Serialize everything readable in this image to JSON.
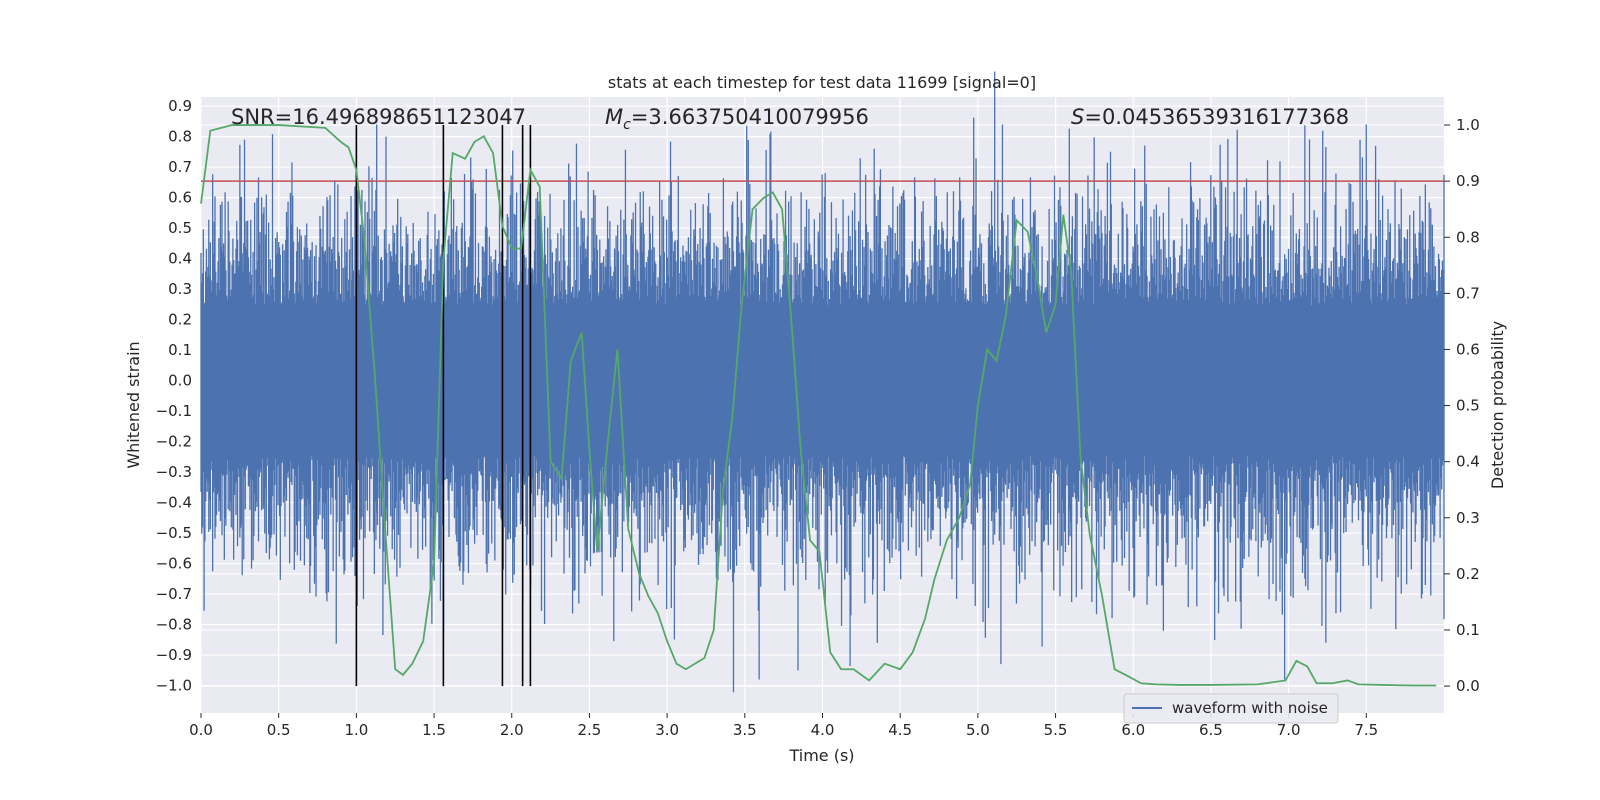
{
  "chart_data": {
    "type": "line",
    "title": "stats at each timestep for test data 11699 [signal=0]",
    "xlabel": "Time (s)",
    "ylabel": "Whitened strain",
    "y2label": "Detection probability",
    "xlim": [
      0.0,
      8.0
    ],
    "ylim": [
      -1.09,
      0.93
    ],
    "y2lim": [
      -0.048,
      1.05
    ],
    "xticks": [
      0.0,
      0.5,
      1.0,
      1.5,
      2.0,
      2.5,
      3.0,
      3.5,
      4.0,
      4.5,
      5.0,
      5.5,
      6.0,
      6.5,
      7.0,
      7.5
    ],
    "yticks": [
      0.9,
      0.8,
      0.7,
      0.6,
      0.5,
      0.4,
      0.3,
      0.2,
      0.1,
      0.0,
      -0.1,
      -0.2,
      -0.3,
      -0.4,
      -0.5,
      -0.6,
      -0.7,
      -0.8,
      -0.9,
      -1.0
    ],
    "y2ticks": [
      1.0,
      0.9,
      0.8,
      0.7,
      0.6,
      0.5,
      0.4,
      0.3,
      0.2,
      0.1,
      0.0
    ],
    "annotations": {
      "snr": "SNR=16.496898651123047",
      "mc_symbol": "M",
      "mc_subscript": "c",
      "mc_value": "=3.663750410079956",
      "s_symbol": "S",
      "s_value": "=0.04536539316177368"
    },
    "legend": {
      "label": "waveform with noise",
      "location": "lower-right"
    },
    "threshold": {
      "axis": "right",
      "value": 0.9,
      "color": "#c44e52"
    },
    "vlines_x": [
      1.0,
      1.56,
      1.94,
      2.07,
      2.12
    ],
    "series": [
      {
        "name": "waveform with noise",
        "axis": "left",
        "color": "#4c72b0",
        "kind": "noise-envelope",
        "n_points": 1600,
        "typical_amplitude": 0.45,
        "noise_seed": 11699
      },
      {
        "name": "detection probability",
        "axis": "right",
        "color": "#55a868",
        "x": [
          0.0,
          0.06,
          0.2,
          0.5,
          0.8,
          0.9,
          0.95,
          1.0,
          1.05,
          1.12,
          1.18,
          1.25,
          1.3,
          1.36,
          1.43,
          1.5,
          1.56,
          1.62,
          1.7,
          1.76,
          1.82,
          1.88,
          1.94,
          2.0,
          2.06,
          2.12,
          2.18,
          2.25,
          2.32,
          2.38,
          2.45,
          2.5,
          2.55,
          2.62,
          2.68,
          2.75,
          2.82,
          2.88,
          2.94,
          3.0,
          3.06,
          3.12,
          3.18,
          3.24,
          3.3,
          3.36,
          3.42,
          3.48,
          3.55,
          3.62,
          3.68,
          3.74,
          3.8,
          3.86,
          3.92,
          3.98,
          4.05,
          4.12,
          4.2,
          4.3,
          4.4,
          4.5,
          4.58,
          4.66,
          4.72,
          4.8,
          4.88,
          4.95,
          5.0,
          5.06,
          5.12,
          5.18,
          5.25,
          5.32,
          5.38,
          5.44,
          5.5,
          5.55,
          5.6,
          5.66,
          5.72,
          5.8,
          5.88,
          5.95,
          6.05,
          6.15,
          6.3,
          6.5,
          6.8,
          6.98,
          7.05,
          7.12,
          7.18,
          7.28,
          7.38,
          7.45,
          7.6,
          7.8,
          7.95
        ],
        "values": [
          0.86,
          0.99,
          1.0,
          1.0,
          0.995,
          0.97,
          0.96,
          0.92,
          0.8,
          0.55,
          0.3,
          0.03,
          0.02,
          0.04,
          0.08,
          0.22,
          0.76,
          0.95,
          0.94,
          0.97,
          0.98,
          0.95,
          0.82,
          0.78,
          0.78,
          0.92,
          0.89,
          0.4,
          0.37,
          0.58,
          0.63,
          0.42,
          0.24,
          0.44,
          0.6,
          0.28,
          0.2,
          0.16,
          0.13,
          0.08,
          0.04,
          0.03,
          0.04,
          0.05,
          0.1,
          0.35,
          0.48,
          0.68,
          0.85,
          0.87,
          0.88,
          0.85,
          0.65,
          0.42,
          0.26,
          0.24,
          0.06,
          0.03,
          0.03,
          0.01,
          0.04,
          0.03,
          0.06,
          0.12,
          0.19,
          0.26,
          0.3,
          0.36,
          0.5,
          0.6,
          0.58,
          0.66,
          0.83,
          0.81,
          0.73,
          0.63,
          0.68,
          0.84,
          0.74,
          0.41,
          0.27,
          0.16,
          0.03,
          0.02,
          0.005,
          0.003,
          0.002,
          0.002,
          0.003,
          0.01,
          0.045,
          0.035,
          0.005,
          0.005,
          0.01,
          0.003,
          0.002,
          0.001,
          0.001
        ]
      }
    ]
  }
}
